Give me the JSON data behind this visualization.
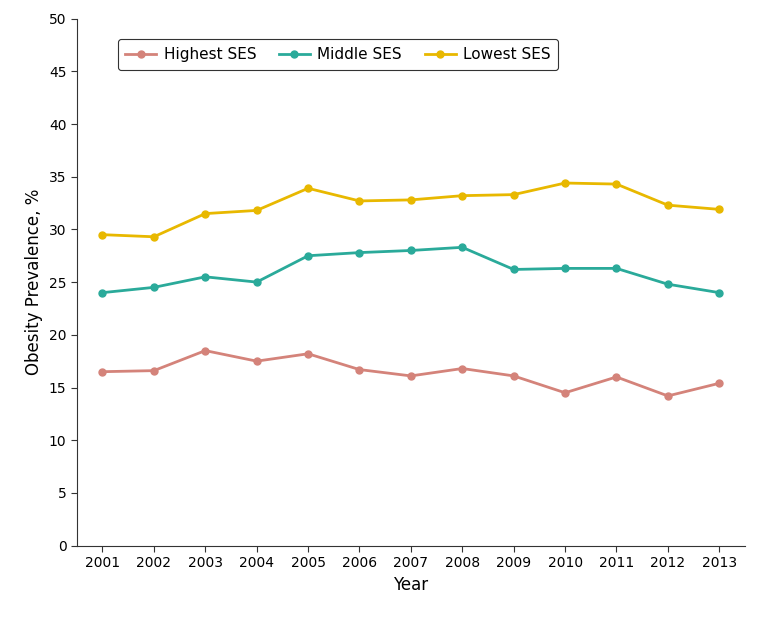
{
  "years": [
    2001,
    2002,
    2003,
    2004,
    2005,
    2006,
    2007,
    2008,
    2009,
    2010,
    2011,
    2012,
    2013
  ],
  "highest_ses": [
    16.5,
    16.6,
    18.5,
    17.5,
    18.2,
    16.7,
    16.1,
    16.8,
    16.1,
    14.5,
    16.0,
    14.2,
    15.4
  ],
  "middle_ses": [
    24.0,
    24.5,
    25.5,
    25.0,
    27.5,
    27.8,
    28.0,
    28.3,
    26.2,
    26.3,
    26.3,
    24.8,
    24.0
  ],
  "lowest_ses": [
    29.5,
    29.3,
    31.5,
    31.8,
    33.9,
    32.7,
    32.8,
    33.2,
    33.3,
    34.4,
    34.3,
    32.3,
    31.9
  ],
  "highest_color": "#d4837a",
  "middle_color": "#2aaa9a",
  "lowest_color": "#e8b800",
  "xlabel": "Year",
  "ylabel": "Obesity Prevalence, %",
  "ylim": [
    0,
    50
  ],
  "yticks": [
    0,
    5,
    10,
    15,
    20,
    25,
    30,
    35,
    40,
    45,
    50
  ],
  "legend_labels": [
    "Highest SES",
    "Middle SES",
    "Lowest SES"
  ],
  "background_color": "#ffffff",
  "marker": "o",
  "marker_size": 5,
  "line_width": 2.0
}
